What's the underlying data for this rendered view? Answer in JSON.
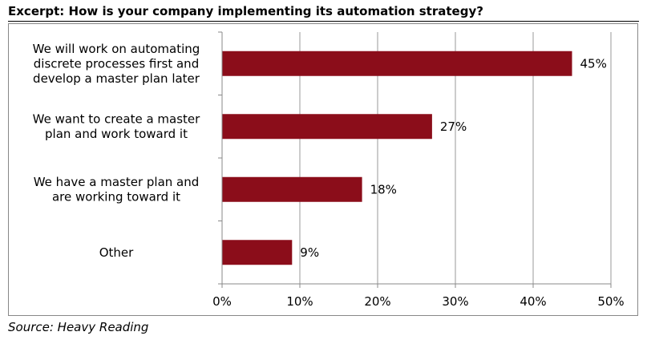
{
  "title": "Excerpt: How is your company implementing its automation strategy?",
  "source": "Source: Heavy Reading",
  "colors": {
    "bar": "#8b0d1a",
    "grid": "#9a9a9a",
    "axis": "#888888"
  },
  "chart_data": {
    "type": "bar",
    "orientation": "horizontal",
    "categories": [
      [
        "We will work on automating",
        "discrete processes first and",
        "develop a master plan later"
      ],
      [
        "We want to create a master",
        "plan and work toward it"
      ],
      [
        "We have a master plan and",
        "are working toward it"
      ],
      [
        "Other"
      ]
    ],
    "values": [
      45,
      27,
      18,
      9
    ],
    "data_labels": [
      "45%",
      "27%",
      "18%",
      "9%"
    ],
    "xlim": [
      0,
      50
    ],
    "xticks": [
      0,
      10,
      20,
      30,
      40,
      50
    ],
    "xtick_labels": [
      "0%",
      "10%",
      "20%",
      "30%",
      "40%",
      "50%"
    ],
    "grid": true,
    "legend": "none"
  }
}
